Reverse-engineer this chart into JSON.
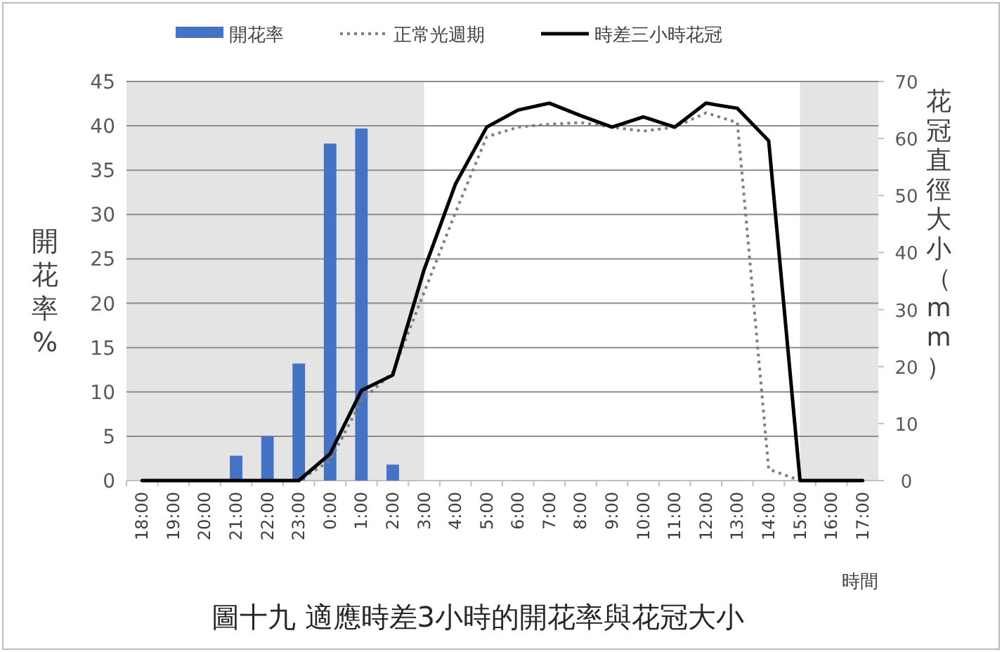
{
  "chart_data": {
    "type": "bar",
    "title": "圖十九 適應時差3小時的開花率與花冠大小",
    "xlabel": "時間",
    "ylabel": "開花率%",
    "y2label": "花冠直徑大小（mm）",
    "categories": [
      "18:00",
      "19:00",
      "20:00",
      "21:00",
      "22:00",
      "23:00",
      "0:00",
      "1:00",
      "2:00",
      "3:00",
      "4:00",
      "5:00",
      "6:00",
      "7:00",
      "8:00",
      "9:00",
      "10:00",
      "11:00",
      "12:00",
      "13:00",
      "14:00",
      "15:00",
      "16:00",
      "17:00"
    ],
    "series": [
      {
        "name": "開花率",
        "color": "#4472c4",
        "values": [
          0,
          0,
          0,
          2.8,
          5,
          13.2,
          38,
          39.7,
          1.8,
          0,
          0,
          0,
          0,
          0,
          0,
          0,
          0,
          0,
          0,
          0,
          0,
          0,
          0,
          0
        ]
      },
      {
        "name": "正常光週期",
        "type": "line",
        "axis": "y2",
        "color": "#7f7f7f",
        "line_style": "dotted",
        "values": [
          0,
          0,
          0,
          0,
          0,
          0,
          3.5,
          14,
          19,
          33,
          47,
          60.3,
          62,
          62.5,
          62.8,
          62,
          61.3,
          62,
          64.5,
          62.8,
          2,
          0,
          0,
          0
        ]
      },
      {
        "name": "時差三小時花冠",
        "type": "line",
        "axis": "y2",
        "color": "#000000",
        "line_style": "solid",
        "values": [
          0,
          0,
          0,
          0,
          0,
          0,
          4.7,
          15.8,
          18.5,
          37,
          52,
          62,
          65,
          66.2,
          64,
          62,
          63.8,
          62,
          66.2,
          65.3,
          59.6,
          0,
          0,
          0
        ]
      }
    ],
    "ylim": [
      0,
      45
    ],
    "yticks": [
      0,
      5,
      10,
      15,
      20,
      25,
      30,
      35,
      40,
      45
    ],
    "y2lim": [
      0,
      70
    ],
    "y2ticks": [
      0,
      10,
      20,
      30,
      40,
      50,
      60,
      70
    ],
    "bands": [
      {
        "axis": "x",
        "from": "18:00",
        "to": "3:00",
        "color": "#e4e4e4"
      },
      {
        "axis": "x",
        "from": "15:00",
        "to": "17:00",
        "color": "#e4e4e4"
      }
    ],
    "grid": "y",
    "legend": "top",
    "marker": "none"
  }
}
